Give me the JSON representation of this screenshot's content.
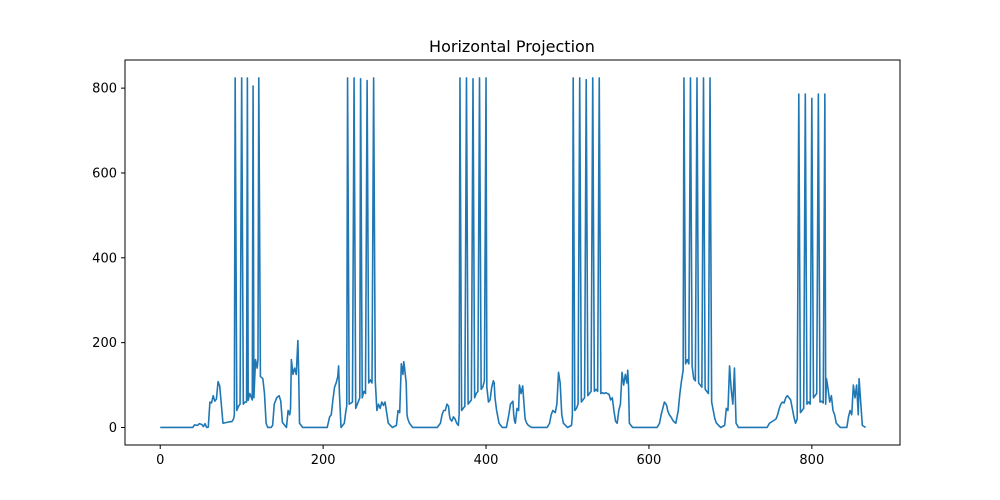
{
  "chart_data": {
    "type": "line",
    "title": "Horizontal Projection",
    "xlabel": "",
    "ylabel": "",
    "xlim": [
      -43.25,
      908.25
    ],
    "ylim": [
      -41.3,
      866.3
    ],
    "x_ticks": [
      0,
      200,
      400,
      600,
      800
    ],
    "y_ticks": [
      0,
      200,
      400,
      600,
      800
    ],
    "grid": false,
    "line_color": "#1f77b4",
    "series": [
      {
        "name": "",
        "points": [
          [
            0,
            0
          ],
          [
            40,
            0
          ],
          [
            42,
            6
          ],
          [
            46,
            5
          ],
          [
            48,
            9
          ],
          [
            51,
            7
          ],
          [
            53,
            2
          ],
          [
            55,
            9
          ],
          [
            57,
            0
          ],
          [
            59,
            1
          ],
          [
            61,
            60
          ],
          [
            63,
            58
          ],
          [
            65,
            75
          ],
          [
            67,
            62
          ],
          [
            69,
            67
          ],
          [
            71,
            108
          ],
          [
            73,
            98
          ],
          [
            75,
            55
          ],
          [
            77,
            10
          ],
          [
            84,
            13
          ],
          [
            88,
            14
          ],
          [
            90,
            20
          ],
          [
            91,
            30
          ],
          [
            92,
            824
          ],
          [
            94,
            40
          ],
          [
            96,
            50
          ],
          [
            98,
            55
          ],
          [
            100,
            824
          ],
          [
            102,
            55
          ],
          [
            104,
            60
          ],
          [
            106,
            60
          ],
          [
            107,
            824
          ],
          [
            108,
            64
          ],
          [
            110,
            80
          ],
          [
            113,
            65
          ],
          [
            114,
            805
          ],
          [
            115,
            70
          ],
          [
            117,
            160
          ],
          [
            118,
            150
          ],
          [
            119,
            140
          ],
          [
            120,
            160
          ],
          [
            121,
            824
          ],
          [
            123,
            120
          ],
          [
            126,
            115
          ],
          [
            128,
            80
          ],
          [
            130,
            10
          ],
          [
            132,
            0
          ],
          [
            136,
            0
          ],
          [
            138,
            5
          ],
          [
            140,
            55
          ],
          [
            143,
            70
          ],
          [
            146,
            75
          ],
          [
            148,
            62
          ],
          [
            150,
            12
          ],
          [
            155,
            0
          ],
          [
            157,
            40
          ],
          [
            159,
            30
          ],
          [
            160,
            45
          ],
          [
            161,
            160
          ],
          [
            163,
            125
          ],
          [
            165,
            140
          ],
          [
            167,
            125
          ],
          [
            169,
            205
          ],
          [
            170,
            125
          ],
          [
            171,
            10
          ],
          [
            175,
            0
          ],
          [
            205,
            0
          ],
          [
            208,
            25
          ],
          [
            210,
            30
          ],
          [
            212,
            65
          ],
          [
            214,
            95
          ],
          [
            216,
            105
          ],
          [
            218,
            120
          ],
          [
            219,
            145
          ],
          [
            220,
            80
          ],
          [
            222,
            0
          ],
          [
            226,
            10
          ],
          [
            228,
            40
          ],
          [
            229,
            50
          ],
          [
            230,
            824
          ],
          [
            232,
            55
          ],
          [
            236,
            60
          ],
          [
            238,
            824
          ],
          [
            240,
            45
          ],
          [
            243,
            60
          ],
          [
            245,
            70
          ],
          [
            246,
            822
          ],
          [
            248,
            70
          ],
          [
            250,
            85
          ],
          [
            252,
            80
          ],
          [
            254,
            818
          ],
          [
            256,
            105
          ],
          [
            258,
            112
          ],
          [
            260,
            105
          ],
          [
            262,
            824
          ],
          [
            264,
            110
          ],
          [
            266,
            40
          ],
          [
            268,
            55
          ],
          [
            270,
            45
          ],
          [
            272,
            60
          ],
          [
            274,
            52
          ],
          [
            276,
            60
          ],
          [
            278,
            35
          ],
          [
            280,
            10
          ],
          [
            285,
            0
          ],
          [
            290,
            5
          ],
          [
            292,
            40
          ],
          [
            294,
            35
          ],
          [
            296,
            150
          ],
          [
            298,
            125
          ],
          [
            299,
            155
          ],
          [
            300,
            140
          ],
          [
            302,
            105
          ],
          [
            303,
            30
          ],
          [
            304,
            20
          ],
          [
            306,
            10
          ],
          [
            310,
            0
          ],
          [
            340,
            0
          ],
          [
            344,
            10
          ],
          [
            346,
            30
          ],
          [
            348,
            40
          ],
          [
            350,
            40
          ],
          [
            352,
            55
          ],
          [
            354,
            50
          ],
          [
            355,
            30
          ],
          [
            356,
            20
          ],
          [
            358,
            15
          ],
          [
            360,
            25
          ],
          [
            362,
            20
          ],
          [
            364,
            10
          ],
          [
            366,
            5
          ],
          [
            367,
            30
          ],
          [
            368,
            824
          ],
          [
            370,
            40
          ],
          [
            372,
            45
          ],
          [
            374,
            50
          ],
          [
            376,
            824
          ],
          [
            378,
            55
          ],
          [
            380,
            60
          ],
          [
            382,
            65
          ],
          [
            384,
            822
          ],
          [
            386,
            70
          ],
          [
            388,
            80
          ],
          [
            390,
            85
          ],
          [
            392,
            824
          ],
          [
            394,
            90
          ],
          [
            396,
            95
          ],
          [
            398,
            110
          ],
          [
            400,
            824
          ],
          [
            401,
            95
          ],
          [
            403,
            60
          ],
          [
            405,
            65
          ],
          [
            407,
            95
          ],
          [
            409,
            110
          ],
          [
            410,
            105
          ],
          [
            411,
            70
          ],
          [
            413,
            40
          ],
          [
            416,
            10
          ],
          [
            420,
            0
          ],
          [
            425,
            0
          ],
          [
            428,
            30
          ],
          [
            430,
            55
          ],
          [
            433,
            62
          ],
          [
            434,
            30
          ],
          [
            435,
            15
          ],
          [
            436,
            10
          ],
          [
            438,
            45
          ],
          [
            440,
            40
          ],
          [
            441,
            100
          ],
          [
            443,
            80
          ],
          [
            445,
            98
          ],
          [
            447,
            45
          ],
          [
            448,
            20
          ],
          [
            450,
            10
          ],
          [
            452,
            5
          ],
          [
            456,
            0
          ],
          [
            475,
            0
          ],
          [
            478,
            10
          ],
          [
            480,
            30
          ],
          [
            482,
            40
          ],
          [
            485,
            35
          ],
          [
            487,
            55
          ],
          [
            489,
            130
          ],
          [
            491,
            105
          ],
          [
            493,
            30
          ],
          [
            495,
            10
          ],
          [
            500,
            0
          ],
          [
            505,
            5
          ],
          [
            506,
            30
          ],
          [
            507,
            824
          ],
          [
            509,
            40
          ],
          [
            511,
            45
          ],
          [
            513,
            55
          ],
          [
            515,
            824
          ],
          [
            517,
            60
          ],
          [
            519,
            65
          ],
          [
            521,
            70
          ],
          [
            523,
            820
          ],
          [
            525,
            75
          ],
          [
            527,
            80
          ],
          [
            529,
            85
          ],
          [
            531,
            824
          ],
          [
            533,
            85
          ],
          [
            535,
            90
          ],
          [
            537,
            85
          ],
          [
            539,
            824
          ],
          [
            541,
            80
          ],
          [
            543,
            82
          ],
          [
            545,
            80
          ],
          [
            547,
            82
          ],
          [
            549,
            80
          ],
          [
            551,
            78
          ],
          [
            553,
            65
          ],
          [
            555,
            70
          ],
          [
            557,
            40
          ],
          [
            559,
            15
          ],
          [
            561,
            10
          ],
          [
            563,
            40
          ],
          [
            565,
            55
          ],
          [
            567,
            130
          ],
          [
            569,
            100
          ],
          [
            571,
            125
          ],
          [
            573,
            105
          ],
          [
            574,
            135
          ],
          [
            575,
            95
          ],
          [
            576,
            10
          ],
          [
            580,
            0
          ],
          [
            610,
            0
          ],
          [
            613,
            10
          ],
          [
            615,
            30
          ],
          [
            617,
            45
          ],
          [
            619,
            60
          ],
          [
            621,
            55
          ],
          [
            622,
            50
          ],
          [
            623,
            40
          ],
          [
            625,
            30
          ],
          [
            627,
            25
          ],
          [
            630,
            15
          ],
          [
            633,
            10
          ],
          [
            636,
            40
          ],
          [
            638,
            80
          ],
          [
            640,
            110
          ],
          [
            642,
            135
          ],
          [
            643,
            824
          ],
          [
            645,
            150
          ],
          [
            647,
            160
          ],
          [
            649,
            150
          ],
          [
            651,
            824
          ],
          [
            653,
            145
          ],
          [
            655,
            115
          ],
          [
            657,
            110
          ],
          [
            659,
            824
          ],
          [
            661,
            105
          ],
          [
            663,
            100
          ],
          [
            665,
            95
          ],
          [
            667,
            824
          ],
          [
            669,
            90
          ],
          [
            671,
            85
          ],
          [
            673,
            80
          ],
          [
            675,
            824
          ],
          [
            677,
            60
          ],
          [
            679,
            40
          ],
          [
            681,
            20
          ],
          [
            683,
            10
          ],
          [
            688,
            0
          ],
          [
            693,
            5
          ],
          [
            695,
            45
          ],
          [
            697,
            40
          ],
          [
            699,
            145
          ],
          [
            701,
            90
          ],
          [
            703,
            55
          ],
          [
            705,
            140
          ],
          [
            707,
            10
          ],
          [
            710,
            0
          ],
          [
            745,
            0
          ],
          [
            748,
            10
          ],
          [
            752,
            15
          ],
          [
            756,
            20
          ],
          [
            758,
            30
          ],
          [
            760,
            45
          ],
          [
            762,
            55
          ],
          [
            764,
            60
          ],
          [
            766,
            58
          ],
          [
            768,
            70
          ],
          [
            770,
            75
          ],
          [
            772,
            70
          ],
          [
            774,
            65
          ],
          [
            776,
            45
          ],
          [
            778,
            25
          ],
          [
            780,
            10
          ],
          [
            782,
            20
          ],
          [
            784,
            786
          ],
          [
            786,
            35
          ],
          [
            788,
            40
          ],
          [
            790,
            45
          ],
          [
            792,
            786
          ],
          [
            794,
            55
          ],
          [
            796,
            60
          ],
          [
            798,
            55
          ],
          [
            800,
            776
          ],
          [
            802,
            70
          ],
          [
            804,
            75
          ],
          [
            806,
            80
          ],
          [
            808,
            786
          ],
          [
            810,
            60
          ],
          [
            812,
            62
          ],
          [
            814,
            58
          ],
          [
            816,
            786
          ],
          [
            817,
            55
          ],
          [
            818,
            115
          ],
          [
            820,
            90
          ],
          [
            822,
            60
          ],
          [
            824,
            75
          ],
          [
            826,
            40
          ],
          [
            828,
            30
          ],
          [
            830,
            10
          ],
          [
            835,
            0
          ],
          [
            843,
            0
          ],
          [
            845,
            25
          ],
          [
            847,
            40
          ],
          [
            849,
            30
          ],
          [
            851,
            100
          ],
          [
            853,
            70
          ],
          [
            855,
            100
          ],
          [
            857,
            30
          ],
          [
            858,
            115
          ],
          [
            860,
            60
          ],
          [
            862,
            5
          ],
          [
            866,
            0
          ]
        ]
      }
    ]
  }
}
